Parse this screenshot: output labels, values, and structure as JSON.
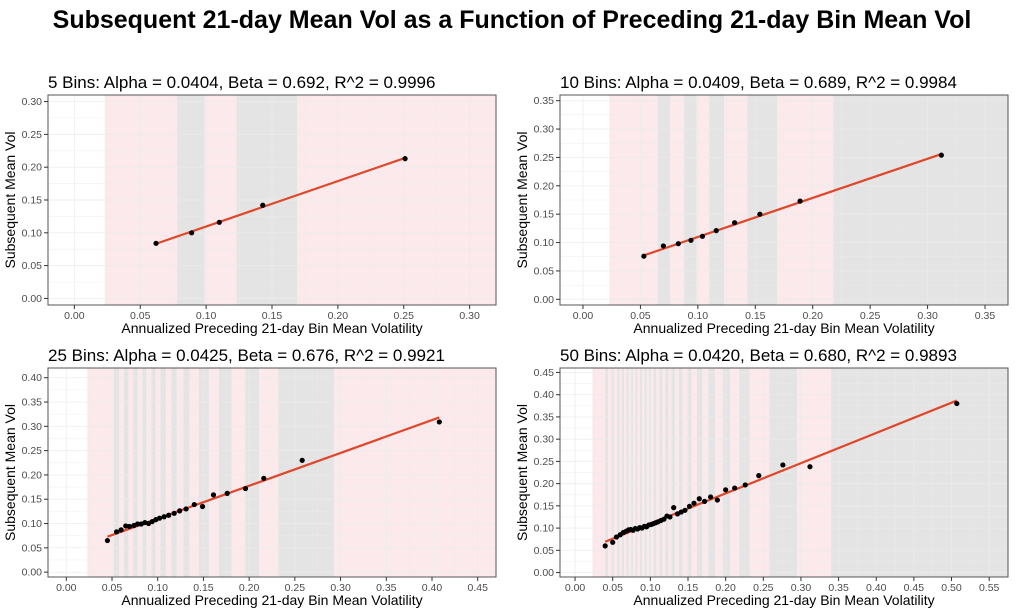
{
  "title": "Subsequent 21-day Mean Vol as a Function of Preceding 21-day Bin Mean Vol",
  "colors": {
    "band_pink": "#fbe9ec",
    "band_gray": "#e4e4e4",
    "fit_line": "#e0462a",
    "point": "#000000",
    "grid": "#ebebeb",
    "frame": "#555555"
  },
  "chart_data": [
    {
      "type": "scatter",
      "title": "5 Bins: Alpha = 0.0404, Beta = 0.692, R^2 = 0.9996",
      "xlabel": "Annualized Preceding 21-day Bin Mean Volatility",
      "ylabel": "Subsequent Mean Vol",
      "xlim": [
        -0.02,
        0.32
      ],
      "ylim": [
        -0.01,
        0.31
      ],
      "xticks": [
        "0.00",
        "0.05",
        "0.10",
        "0.15",
        "0.20",
        "0.25",
        "0.30"
      ],
      "yticks": [
        "0.00",
        "0.05",
        "0.10",
        "0.15",
        "0.20",
        "0.25",
        "0.30"
      ],
      "fit": {
        "alpha": 0.0404,
        "beta": 0.692,
        "x_range": [
          0.062,
          0.251
        ]
      },
      "bands": [
        {
          "from": 0.023,
          "to": 0.078,
          "shade": "pink"
        },
        {
          "from": 0.078,
          "to": 0.099,
          "shade": "gray"
        },
        {
          "from": 0.099,
          "to": 0.123,
          "shade": "pink"
        },
        {
          "from": 0.123,
          "to": 0.169,
          "shade": "gray"
        },
        {
          "from": 0.169,
          "to": 0.32,
          "shade": "pink"
        }
      ],
      "points": {
        "x": [
          0.062,
          0.089,
          0.11,
          0.143,
          0.251
        ],
        "y": [
          0.084,
          0.1,
          0.116,
          0.142,
          0.213
        ]
      }
    },
    {
      "type": "scatter",
      "title": "10 Bins: Alpha = 0.0409, Beta = 0.689, R^2 = 0.9984",
      "xlabel": "Annualized Preceding 21-day Bin Mean Volatility",
      "ylabel": "Subsequent Mean Vol",
      "xlim": [
        -0.02,
        0.37
      ],
      "ylim": [
        -0.01,
        0.36
      ],
      "xticks": [
        "0.00",
        "0.05",
        "0.10",
        "0.15",
        "0.20",
        "0.25",
        "0.30",
        "0.35"
      ],
      "yticks": [
        "0.00",
        "0.05",
        "0.10",
        "0.15",
        "0.20",
        "0.25",
        "0.30",
        "0.35"
      ],
      "fit": {
        "alpha": 0.0409,
        "beta": 0.689,
        "x_range": [
          0.053,
          0.312
        ]
      },
      "bands": [
        {
          "from": 0.023,
          "to": 0.065,
          "shade": "pink"
        },
        {
          "from": 0.065,
          "to": 0.076,
          "shade": "gray"
        },
        {
          "from": 0.076,
          "to": 0.088,
          "shade": "pink"
        },
        {
          "from": 0.088,
          "to": 0.099,
          "shade": "gray"
        },
        {
          "from": 0.099,
          "to": 0.11,
          "shade": "pink"
        },
        {
          "from": 0.11,
          "to": 0.123,
          "shade": "gray"
        },
        {
          "from": 0.123,
          "to": 0.143,
          "shade": "pink"
        },
        {
          "from": 0.143,
          "to": 0.169,
          "shade": "gray"
        },
        {
          "from": 0.169,
          "to": 0.218,
          "shade": "pink"
        },
        {
          "from": 0.218,
          "to": 0.37,
          "shade": "gray"
        }
      ],
      "points": {
        "x": [
          0.053,
          0.07,
          0.083,
          0.094,
          0.104,
          0.116,
          0.132,
          0.154,
          0.189,
          0.312
        ],
        "y": [
          0.076,
          0.094,
          0.098,
          0.104,
          0.111,
          0.121,
          0.135,
          0.15,
          0.173,
          0.254
        ]
      }
    },
    {
      "type": "scatter",
      "title": "25 Bins: Alpha = 0.0425, Beta = 0.676, R^2 = 0.9921",
      "xlabel": "Annualized Preceding 21-day Bin Mean Volatility",
      "ylabel": "Subsequent Mean Vol",
      "xlim": [
        -0.02,
        0.47
      ],
      "ylim": [
        -0.01,
        0.42
      ],
      "xticks": [
        "0.00",
        "0.05",
        "0.10",
        "0.15",
        "0.20",
        "0.25",
        "0.30",
        "0.35",
        "0.40",
        "0.45"
      ],
      "yticks": [
        "0.00",
        "0.05",
        "0.10",
        "0.15",
        "0.20",
        "0.25",
        "0.30",
        "0.35",
        "0.40"
      ],
      "fit": {
        "alpha": 0.0425,
        "beta": 0.676,
        "x_range": [
          0.045,
          0.408
        ]
      },
      "bands": [
        {
          "from": 0.023,
          "to": 0.052,
          "shade": "pink"
        },
        {
          "from": 0.052,
          "to": 0.058,
          "shade": "gray"
        },
        {
          "from": 0.058,
          "to": 0.063,
          "shade": "pink"
        },
        {
          "from": 0.063,
          "to": 0.068,
          "shade": "gray"
        },
        {
          "from": 0.068,
          "to": 0.073,
          "shade": "pink"
        },
        {
          "from": 0.073,
          "to": 0.078,
          "shade": "gray"
        },
        {
          "from": 0.078,
          "to": 0.083,
          "shade": "pink"
        },
        {
          "from": 0.083,
          "to": 0.088,
          "shade": "gray"
        },
        {
          "from": 0.088,
          "to": 0.093,
          "shade": "pink"
        },
        {
          "from": 0.093,
          "to": 0.098,
          "shade": "gray"
        },
        {
          "from": 0.098,
          "to": 0.103,
          "shade": "pink"
        },
        {
          "from": 0.103,
          "to": 0.109,
          "shade": "gray"
        },
        {
          "from": 0.109,
          "to": 0.115,
          "shade": "pink"
        },
        {
          "from": 0.115,
          "to": 0.121,
          "shade": "gray"
        },
        {
          "from": 0.121,
          "to": 0.128,
          "shade": "pink"
        },
        {
          "from": 0.128,
          "to": 0.135,
          "shade": "gray"
        },
        {
          "from": 0.135,
          "to": 0.145,
          "shade": "pink"
        },
        {
          "from": 0.145,
          "to": 0.156,
          "shade": "gray"
        },
        {
          "from": 0.156,
          "to": 0.167,
          "shade": "pink"
        },
        {
          "from": 0.167,
          "to": 0.181,
          "shade": "gray"
        },
        {
          "from": 0.181,
          "to": 0.196,
          "shade": "pink"
        },
        {
          "from": 0.196,
          "to": 0.211,
          "shade": "gray"
        },
        {
          "from": 0.211,
          "to": 0.232,
          "shade": "pink"
        },
        {
          "from": 0.232,
          "to": 0.293,
          "shade": "gray"
        },
        {
          "from": 0.293,
          "to": 0.47,
          "shade": "pink"
        }
      ],
      "points": {
        "x": [
          0.045,
          0.055,
          0.06,
          0.065,
          0.069,
          0.074,
          0.078,
          0.082,
          0.086,
          0.09,
          0.094,
          0.098,
          0.102,
          0.107,
          0.112,
          0.118,
          0.124,
          0.131,
          0.14,
          0.149,
          0.161,
          0.176,
          0.196,
          0.216,
          0.258,
          0.408
        ],
        "y": [
          0.065,
          0.083,
          0.087,
          0.095,
          0.094,
          0.096,
          0.099,
          0.099,
          0.102,
          0.1,
          0.104,
          0.108,
          0.111,
          0.114,
          0.117,
          0.121,
          0.126,
          0.13,
          0.139,
          0.135,
          0.159,
          0.162,
          0.172,
          0.193,
          0.23,
          0.309
        ]
      }
    },
    {
      "type": "scatter",
      "title": "50 Bins: Alpha = 0.0420, Beta = 0.680, R^2 = 0.9893",
      "xlabel": "Annualized Preceding 21-day Bin Mean Volatility",
      "ylabel": "Subsequent Mean Vol",
      "xlim": [
        -0.02,
        0.575
      ],
      "ylim": [
        -0.01,
        0.46
      ],
      "xticks": [
        "0.00",
        "0.05",
        "0.10",
        "0.15",
        "0.20",
        "0.25",
        "0.30",
        "0.35",
        "0.40",
        "0.45",
        "0.50",
        "0.55"
      ],
      "yticks": [
        "0.00",
        "0.05",
        "0.10",
        "0.15",
        "0.20",
        "0.25",
        "0.30",
        "0.35",
        "0.40",
        "0.45"
      ],
      "fit": {
        "alpha": 0.042,
        "beta": 0.68,
        "x_range": [
          0.04,
          0.507
        ]
      },
      "bands": [
        {
          "from": 0.023,
          "to": 0.04,
          "shade": "pink"
        },
        {
          "from": 0.04,
          "to": 0.044,
          "shade": "gray"
        },
        {
          "from": 0.044,
          "to": 0.048,
          "shade": "pink"
        },
        {
          "from": 0.048,
          "to": 0.052,
          "shade": "gray"
        },
        {
          "from": 0.052,
          "to": 0.056,
          "shade": "pink"
        },
        {
          "from": 0.056,
          "to": 0.059,
          "shade": "gray"
        },
        {
          "from": 0.059,
          "to": 0.062,
          "shade": "pink"
        },
        {
          "from": 0.062,
          "to": 0.065,
          "shade": "gray"
        },
        {
          "from": 0.065,
          "to": 0.068,
          "shade": "pink"
        },
        {
          "from": 0.068,
          "to": 0.071,
          "shade": "gray"
        },
        {
          "from": 0.071,
          "to": 0.074,
          "shade": "pink"
        },
        {
          "from": 0.074,
          "to": 0.077,
          "shade": "gray"
        },
        {
          "from": 0.077,
          "to": 0.08,
          "shade": "pink"
        },
        {
          "from": 0.08,
          "to": 0.083,
          "shade": "gray"
        },
        {
          "from": 0.083,
          "to": 0.086,
          "shade": "pink"
        },
        {
          "from": 0.086,
          "to": 0.089,
          "shade": "gray"
        },
        {
          "from": 0.089,
          "to": 0.092,
          "shade": "pink"
        },
        {
          "from": 0.092,
          "to": 0.095,
          "shade": "gray"
        },
        {
          "from": 0.095,
          "to": 0.098,
          "shade": "pink"
        },
        {
          "from": 0.098,
          "to": 0.101,
          "shade": "gray"
        },
        {
          "from": 0.101,
          "to": 0.104,
          "shade": "pink"
        },
        {
          "from": 0.104,
          "to": 0.108,
          "shade": "gray"
        },
        {
          "from": 0.108,
          "to": 0.112,
          "shade": "pink"
        },
        {
          "from": 0.112,
          "to": 0.116,
          "shade": "gray"
        },
        {
          "from": 0.116,
          "to": 0.12,
          "shade": "pink"
        },
        {
          "from": 0.12,
          "to": 0.124,
          "shade": "gray"
        },
        {
          "from": 0.124,
          "to": 0.128,
          "shade": "pink"
        },
        {
          "from": 0.128,
          "to": 0.133,
          "shade": "gray"
        },
        {
          "from": 0.133,
          "to": 0.138,
          "shade": "pink"
        },
        {
          "from": 0.138,
          "to": 0.143,
          "shade": "gray"
        },
        {
          "from": 0.143,
          "to": 0.149,
          "shade": "pink"
        },
        {
          "from": 0.149,
          "to": 0.155,
          "shade": "gray"
        },
        {
          "from": 0.155,
          "to": 0.162,
          "shade": "pink"
        },
        {
          "from": 0.162,
          "to": 0.169,
          "shade": "gray"
        },
        {
          "from": 0.169,
          "to": 0.177,
          "shade": "pink"
        },
        {
          "from": 0.177,
          "to": 0.186,
          "shade": "gray"
        },
        {
          "from": 0.186,
          "to": 0.196,
          "shade": "pink"
        },
        {
          "from": 0.196,
          "to": 0.206,
          "shade": "gray"
        },
        {
          "from": 0.206,
          "to": 0.218,
          "shade": "pink"
        },
        {
          "from": 0.218,
          "to": 0.232,
          "shade": "gray"
        },
        {
          "from": 0.232,
          "to": 0.258,
          "shade": "pink"
        },
        {
          "from": 0.258,
          "to": 0.295,
          "shade": "gray"
        },
        {
          "from": 0.295,
          "to": 0.34,
          "shade": "pink"
        },
        {
          "from": 0.34,
          "to": 0.575,
          "shade": "gray"
        }
      ],
      "points": {
        "x": [
          0.04,
          0.05,
          0.055,
          0.06,
          0.064,
          0.068,
          0.071,
          0.074,
          0.077,
          0.08,
          0.083,
          0.086,
          0.089,
          0.092,
          0.095,
          0.098,
          0.101,
          0.104,
          0.107,
          0.11,
          0.114,
          0.118,
          0.122,
          0.126,
          0.131,
          0.136,
          0.141,
          0.146,
          0.152,
          0.158,
          0.165,
          0.172,
          0.18,
          0.189,
          0.2,
          0.212,
          0.226,
          0.244,
          0.276,
          0.312,
          0.507
        ],
        "y": [
          0.06,
          0.068,
          0.08,
          0.085,
          0.09,
          0.093,
          0.096,
          0.097,
          0.095,
          0.099,
          0.098,
          0.101,
          0.1,
          0.104,
          0.103,
          0.107,
          0.108,
          0.11,
          0.112,
          0.114,
          0.117,
          0.12,
          0.127,
          0.125,
          0.146,
          0.132,
          0.136,
          0.14,
          0.149,
          0.156,
          0.166,
          0.16,
          0.17,
          0.163,
          0.186,
          0.19,
          0.197,
          0.218,
          0.242,
          0.238,
          0.38
        ]
      }
    }
  ]
}
